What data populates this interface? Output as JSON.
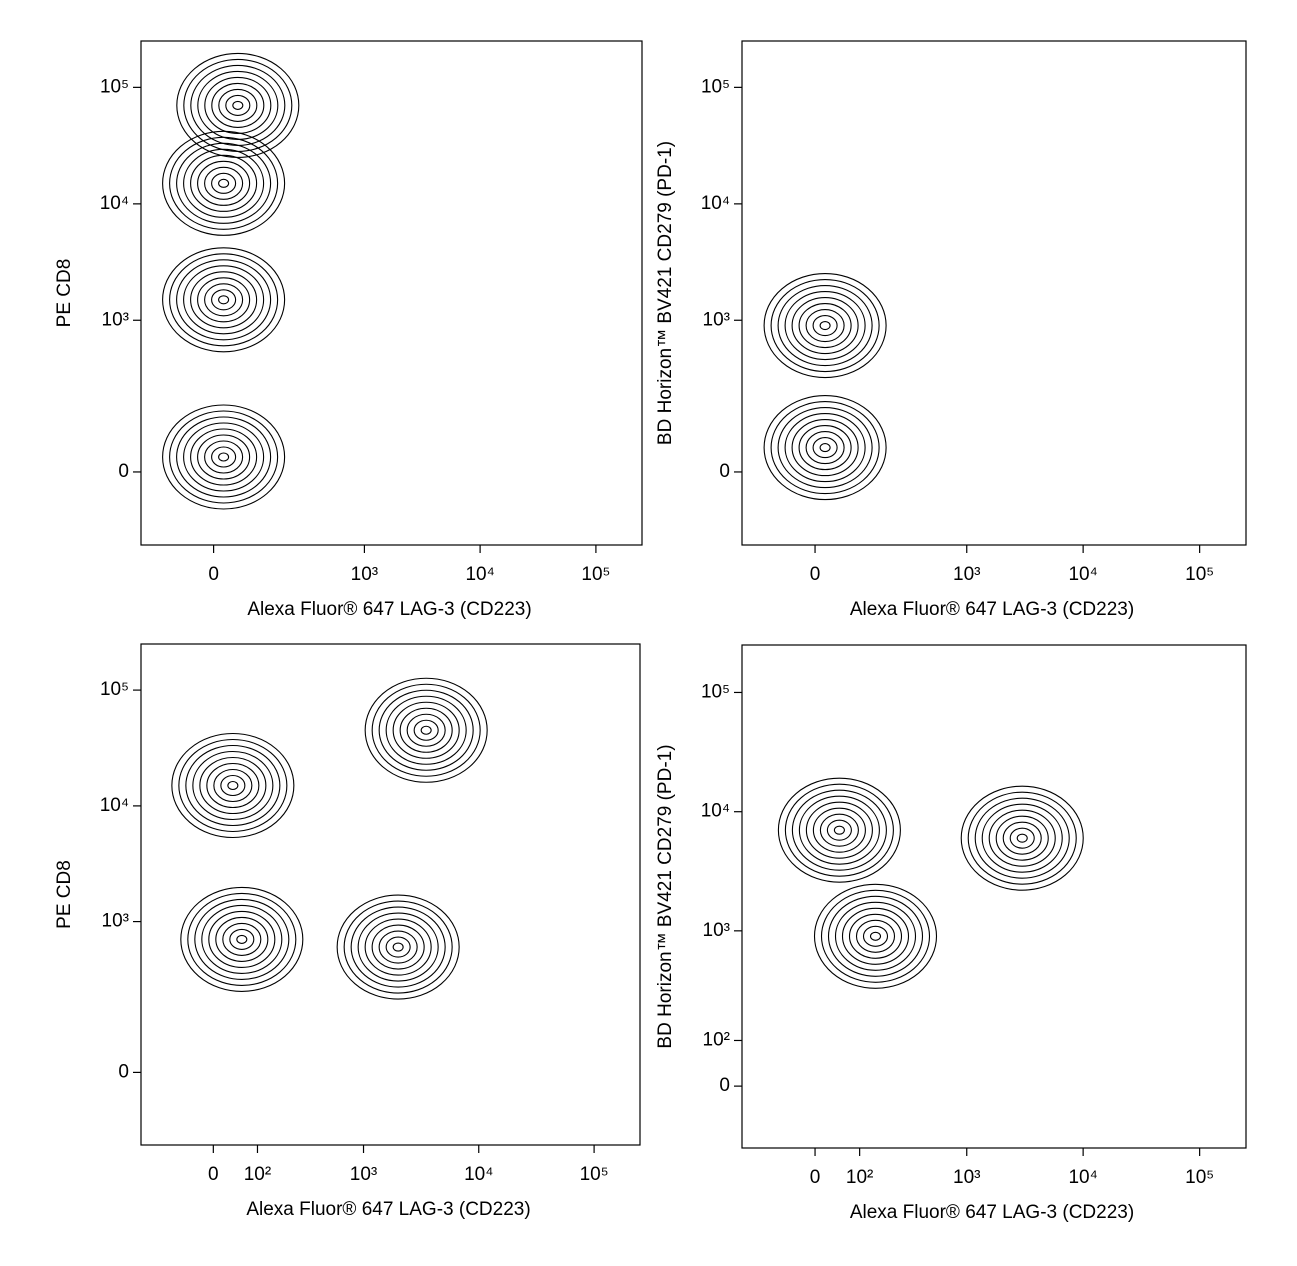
{
  "chart_data": [
    {
      "type": "contour",
      "x_label": "Alexa Fluor® 647 LAG-3 (CD223)",
      "y_label": "PE CD8",
      "xlim": [
        -200,
        250000
      ],
      "ylim": [
        -200,
        250000
      ],
      "xticks": [
        0,
        {
          "value": 1000,
          "label": "10³"
        },
        {
          "value": 10000,
          "label": "10⁴"
        },
        {
          "value": 100000,
          "label": "10⁵"
        }
      ],
      "yticks": [
        0,
        {
          "value": 1000,
          "label": "10³"
        },
        {
          "value": 10000,
          "label": "10⁴"
        },
        {
          "value": 100000,
          "label": "10⁵"
        }
      ],
      "clusters": [
        {
          "x": 50,
          "y": 70000
        },
        {
          "x": 20,
          "y": 15000
        },
        {
          "x": 20,
          "y": 1500
        },
        {
          "x": 20,
          "y": 30
        }
      ]
    },
    {
      "type": "contour",
      "x_label": "Alexa Fluor® 647 LAG-3 (CD223)",
      "y_label": "BD Horizon™ BV421 CD279 (PD-1)",
      "xlim": [
        -200,
        250000
      ],
      "ylim": [
        -200,
        250000
      ],
      "xticks": [
        0,
        {
          "value": 1000,
          "label": "10³"
        },
        {
          "value": 10000,
          "label": "10⁴"
        },
        {
          "value": 100000,
          "label": "10⁵"
        }
      ],
      "yticks": [
        0,
        {
          "value": 1000,
          "label": "10³"
        },
        {
          "value": 10000,
          "label": "10⁴"
        },
        {
          "value": 100000,
          "label": "10⁵"
        }
      ],
      "clusters": [
        {
          "x": 20,
          "y": 900
        },
        {
          "x": 20,
          "y": 50
        }
      ]
    },
    {
      "type": "contour",
      "x_label": "Alexa Fluor® 647 LAG-3 (CD223)",
      "y_label": "PE CD8",
      "xlim": [
        -200,
        250000
      ],
      "ylim": [
        -200,
        250000
      ],
      "xticks": [
        0,
        {
          "value": 100,
          "label": "10²"
        },
        {
          "value": 1000,
          "label": "10³"
        },
        {
          "value": 10000,
          "label": "10⁴"
        },
        {
          "value": 100000,
          "label": "10⁵"
        }
      ],
      "yticks": [
        0,
        {
          "value": 1000,
          "label": "10³"
        },
        {
          "value": 10000,
          "label": "10⁴"
        },
        {
          "value": 100000,
          "label": "10⁵"
        }
      ],
      "clusters": [
        {
          "x": 3500,
          "y": 45000
        },
        {
          "x": 40,
          "y": 15000
        },
        {
          "x": 60,
          "y": 700
        },
        {
          "x": 2000,
          "y": 600
        }
      ]
    },
    {
      "type": "contour",
      "x_label": "Alexa Fluor® 647 LAG-3 (CD223)",
      "y_label": "BD Horizon™ BV421 CD279 (PD-1)",
      "xlim": [
        -200,
        250000
      ],
      "ylim": [
        -150,
        250000
      ],
      "xticks": [
        0,
        {
          "value": 100,
          "label": "10²"
        },
        {
          "value": 1000,
          "label": "10³"
        },
        {
          "value": 10000,
          "label": "10⁴"
        },
        {
          "value": 100000,
          "label": "10⁵"
        }
      ],
      "yticks": [
        0,
        {
          "value": 100,
          "label": "10²"
        },
        {
          "value": 1000,
          "label": "10³"
        },
        {
          "value": 10000,
          "label": "10⁴"
        },
        {
          "value": 100000,
          "label": "10⁵"
        }
      ],
      "clusters": [
        {
          "x": 3000,
          "y": 6000
        },
        {
          "x": 50,
          "y": 7000
        },
        {
          "x": 150,
          "y": 900
        }
      ]
    }
  ]
}
